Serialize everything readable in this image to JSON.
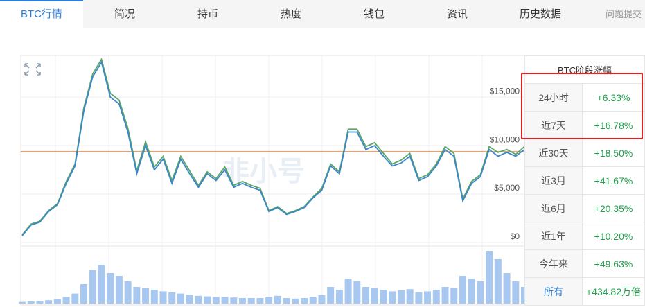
{
  "tabs": [
    "BTC行情",
    "简况",
    "持币",
    "热度",
    "钱包",
    "资讯",
    "历史数据",
    "问题提交"
  ],
  "chart_data": {
    "type": "line",
    "watermark": "非小号",
    "ylim": [
      0,
      19300
    ],
    "yticks": [
      {
        "value": 0,
        "label": "$0"
      },
      {
        "value": 5000,
        "label": "$5,000"
      },
      {
        "value": 10000,
        "label": "$10,000"
      },
      {
        "value": 15000,
        "label": "$15,000"
      }
    ],
    "grid": true,
    "ref_line": {
      "value": 9400,
      "color": "#f0a060"
    },
    "series": [
      {
        "color": "#5aa469",
        "values": [
          800,
          1900,
          2200,
          3300,
          4000,
          6300,
          8100,
          13900,
          17400,
          18900,
          15400,
          14700,
          11800,
          7400,
          10400,
          7800,
          8900,
          6400,
          8900,
          7400,
          5900,
          7300,
          6600,
          7800,
          5900,
          6300,
          5900,
          5600,
          3300,
          3700,
          3000,
          3300,
          3700,
          4700,
          5600,
          8100,
          7300,
          11700,
          11700,
          9900,
          10300,
          9200,
          8100,
          8500,
          9200,
          6600,
          7000,
          8100,
          9900,
          9200,
          4500,
          6300,
          7000,
          9900,
          9300,
          9600,
          9100,
          9900
        ]
      },
      {
        "color": "#3a86c8",
        "values": [
          700,
          1800,
          2100,
          3200,
          3900,
          6100,
          7900,
          13600,
          17100,
          18600,
          15000,
          14300,
          11400,
          7100,
          10000,
          7500,
          8600,
          6100,
          8600,
          7100,
          5700,
          7100,
          6400,
          7500,
          5700,
          6100,
          5700,
          5400,
          3200,
          3600,
          2900,
          3200,
          3600,
          4600,
          5400,
          7900,
          7100,
          11400,
          11400,
          9600,
          10000,
          8900,
          7900,
          8200,
          8900,
          6400,
          6800,
          7900,
          9600,
          8900,
          4300,
          6100,
          6800,
          9600,
          8900,
          9300,
          8900,
          9600
        ]
      }
    ],
    "volume": {
      "color": "#a9c8f0",
      "values": [
        3,
        4,
        5,
        6,
        8,
        12,
        18,
        35,
        60,
        70,
        55,
        50,
        40,
        30,
        28,
        25,
        22,
        20,
        18,
        16,
        14,
        13,
        12,
        12,
        11,
        10,
        10,
        10,
        12,
        14,
        10,
        9,
        10,
        12,
        15,
        30,
        25,
        45,
        40,
        30,
        28,
        25,
        22,
        24,
        26,
        20,
        22,
        25,
        30,
        28,
        50,
        45,
        40,
        95,
        80,
        55,
        40,
        30
      ]
    }
  },
  "table": {
    "title": "BTC阶段涨幅",
    "rows": [
      [
        "24小时",
        "+6.33%"
      ],
      [
        "近7天",
        "+16.78%"
      ],
      [
        "近30天",
        "+18.50%"
      ],
      [
        "近3月",
        "+41.67%"
      ],
      [
        "近6月",
        "+20.35%"
      ],
      [
        "近1年",
        "+10.20%"
      ],
      [
        "今年来",
        "+49.63%"
      ],
      [
        "所有",
        "+434.82万倍"
      ]
    ]
  }
}
